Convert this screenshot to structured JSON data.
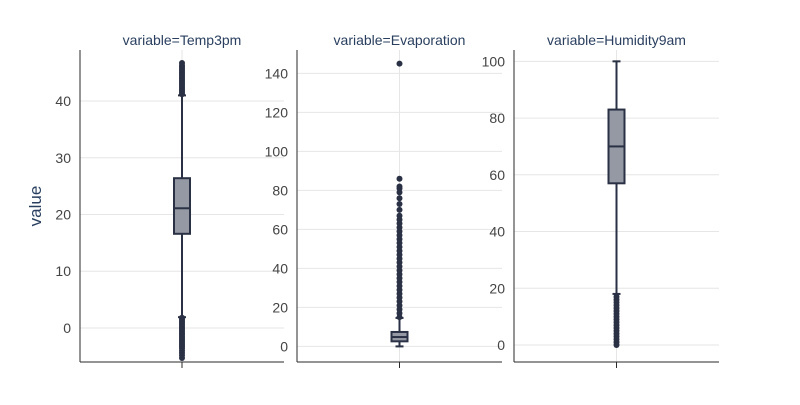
{
  "chart_data": {
    "type": "box",
    "ylabel": "value",
    "colors": {
      "box_fill": "#9599a4",
      "box_line": "#2a3145",
      "axis": "#2a2a2a",
      "grid": "#e6e6e6",
      "text": "#2a3f5f"
    },
    "panels": [
      {
        "title": "variable=Temp3pm",
        "ylim": [
          -6,
          49
        ],
        "yticks": [
          0,
          10,
          20,
          30,
          40
        ],
        "stats": {
          "min": -5.3,
          "whisker_low": 1.9,
          "q1": 16.6,
          "median": 21.1,
          "q3": 26.4,
          "whisker_high": 41.0,
          "max": 46.7
        },
        "outliers_low": [
          1.8,
          1.5,
          1.2,
          0.9,
          0.6,
          0.3,
          0.0,
          -0.3,
          -0.6,
          -0.9,
          -1.2,
          -1.5,
          -1.8,
          -2.1,
          -2.4,
          -2.7,
          -3.0,
          -3.3,
          -3.6,
          -4.0,
          -4.4,
          -4.8,
          -5.3
        ],
        "outliers_high": [
          41.2,
          41.5,
          41.8,
          42.1,
          42.4,
          42.7,
          43.0,
          43.3,
          43.6,
          43.9,
          44.2,
          44.5,
          44.8,
          45.1,
          45.4,
          45.7,
          46.0,
          46.3,
          46.7
        ]
      },
      {
        "title": "variable=Evaporation",
        "ylim": [
          -8,
          152
        ],
        "yticks": [
          0,
          20,
          40,
          60,
          80,
          100,
          120,
          140
        ],
        "stats": {
          "min": 0.0,
          "whisker_low": 0.0,
          "q1": 2.6,
          "median": 4.8,
          "q3": 7.4,
          "whisker_high": 14.6,
          "max": 145.0
        },
        "outliers_low": [],
        "outliers_high": [
          15,
          17,
          19,
          21,
          23,
          25,
          27,
          29,
          31,
          33,
          35,
          37,
          39,
          41,
          43,
          45,
          47,
          49,
          51,
          53,
          55,
          57,
          59,
          61,
          63,
          65,
          67,
          70,
          73,
          76,
          79,
          81,
          82,
          86,
          145
        ]
      },
      {
        "title": "variable=Humidity9am",
        "ylim": [
          -6,
          104
        ],
        "yticks": [
          0,
          20,
          40,
          60,
          80,
          100
        ],
        "stats": {
          "min": 0,
          "whisker_low": 18,
          "q1": 57,
          "median": 70,
          "q3": 83,
          "whisker_high": 100,
          "max": 100
        },
        "outliers_low": [
          17,
          16,
          15,
          14,
          13,
          12,
          11,
          10,
          9,
          8,
          7,
          6,
          5,
          4,
          3,
          2,
          1,
          0
        ],
        "outliers_high": []
      }
    ]
  }
}
